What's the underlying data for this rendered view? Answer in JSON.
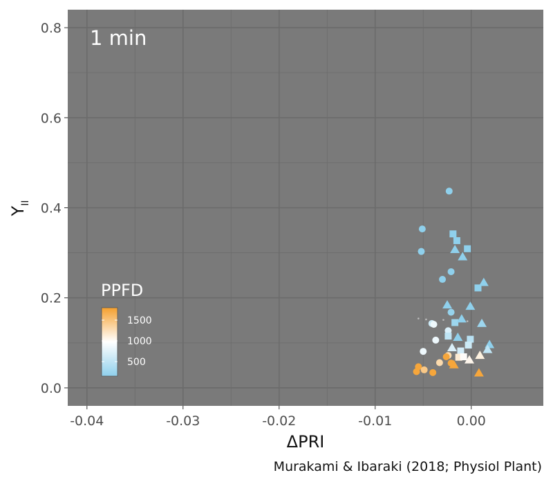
{
  "chart_data": {
    "type": "scatter",
    "title": "",
    "panel_label": "1 min",
    "xlabel": "ΔPRI",
    "ylabel_main": "Y",
    "ylabel_sub": "II",
    "xlim": [
      -0.042,
      0.0075
    ],
    "ylim": [
      -0.04,
      0.84
    ],
    "x_ticks": [
      -0.04,
      -0.03,
      -0.02,
      -0.01,
      0.0
    ],
    "x_tick_labels": [
      "-0.04",
      "-0.03",
      "-0.02",
      "-0.01",
      "0.00"
    ],
    "y_ticks": [
      0.0,
      0.2,
      0.4,
      0.6,
      0.8
    ],
    "y_tick_labels": [
      "0.0",
      "0.2",
      "0.4",
      "0.6",
      "0.8"
    ],
    "grid": true,
    "legend": {
      "title": "PPFD",
      "position": "bottom-left",
      "range": [
        150,
        1800
      ],
      "ticks": [
        500,
        1000,
        1500
      ],
      "tick_labels": [
        "500",
        "1000",
        "1500"
      ],
      "colors": {
        "low": "#8fd0ec",
        "mid": "#ffffff",
        "high": "#f5a02e"
      }
    },
    "caption": "Murakami & Ibaraki (2018; Physiol Plant)",
    "panel_bg": "#7a7a7a",
    "grid_color": "#6b6b6b",
    "points": [
      {
        "x": -0.0023,
        "y": 0.437,
        "shape": "circle",
        "ppfd": 150
      },
      {
        "x": -0.0051,
        "y": 0.353,
        "shape": "circle",
        "ppfd": 150
      },
      {
        "x": -0.0052,
        "y": 0.303,
        "shape": "circle",
        "ppfd": 150
      },
      {
        "x": -0.0021,
        "y": 0.258,
        "shape": "circle",
        "ppfd": 150
      },
      {
        "x": -0.003,
        "y": 0.241,
        "shape": "circle",
        "ppfd": 150
      },
      {
        "x": -0.0021,
        "y": 0.168,
        "shape": "circle",
        "ppfd": 200
      },
      {
        "x": -0.0041,
        "y": 0.143,
        "shape": "circle",
        "ppfd": 600
      },
      {
        "x": -0.0039,
        "y": 0.141,
        "shape": "circle",
        "ppfd": 850
      },
      {
        "x": -0.0024,
        "y": 0.127,
        "shape": "circle",
        "ppfd": 700
      },
      {
        "x": -0.0037,
        "y": 0.106,
        "shape": "circle",
        "ppfd": 850
      },
      {
        "x": -0.005,
        "y": 0.081,
        "shape": "circle",
        "ppfd": 850
      },
      {
        "x": -0.0024,
        "y": 0.072,
        "shape": "circle",
        "ppfd": 1300
      },
      {
        "x": -0.0033,
        "y": 0.056,
        "shape": "circle",
        "ppfd": 1300
      },
      {
        "x": -0.0055,
        "y": 0.047,
        "shape": "circle",
        "ppfd": 1750
      },
      {
        "x": -0.0049,
        "y": 0.04,
        "shape": "circle",
        "ppfd": 1450
      },
      {
        "x": -0.0057,
        "y": 0.036,
        "shape": "circle",
        "ppfd": 1750
      },
      {
        "x": -0.004,
        "y": 0.034,
        "shape": "circle",
        "ppfd": 1750
      },
      {
        "x": -0.0026,
        "y": 0.069,
        "shape": "circle",
        "ppfd": 1750
      },
      {
        "x": -0.0021,
        "y": 0.055,
        "shape": "circle",
        "ppfd": 1750
      },
      {
        "x": -0.0019,
        "y": 0.342,
        "shape": "square",
        "ppfd": 150
      },
      {
        "x": -0.0015,
        "y": 0.327,
        "shape": "square",
        "ppfd": 150
      },
      {
        "x": -0.0004,
        "y": 0.309,
        "shape": "square",
        "ppfd": 150
      },
      {
        "x": 0.0007,
        "y": 0.222,
        "shape": "square",
        "ppfd": 150
      },
      {
        "x": -0.0017,
        "y": 0.145,
        "shape": "square",
        "ppfd": 250
      },
      {
        "x": -0.0024,
        "y": 0.115,
        "shape": "square",
        "ppfd": 500
      },
      {
        "x": -0.0001,
        "y": 0.108,
        "shape": "square",
        "ppfd": 450
      },
      {
        "x": -0.0003,
        "y": 0.095,
        "shape": "square",
        "ppfd": 600
      },
      {
        "x": -0.0011,
        "y": 0.082,
        "shape": "square",
        "ppfd": 650
      },
      {
        "x": -0.0013,
        "y": 0.068,
        "shape": "square",
        "ppfd": 1150
      },
      {
        "x": -0.0008,
        "y": 0.069,
        "shape": "square",
        "ppfd": 1000
      },
      {
        "x": -0.0017,
        "y": 0.307,
        "shape": "triangle",
        "ppfd": 150
      },
      {
        "x": -0.0009,
        "y": 0.291,
        "shape": "triangle",
        "ppfd": 150
      },
      {
        "x": 0.0013,
        "y": 0.234,
        "shape": "triangle",
        "ppfd": 150
      },
      {
        "x": -0.0025,
        "y": 0.184,
        "shape": "triangle",
        "ppfd": 150
      },
      {
        "x": -0.0001,
        "y": 0.181,
        "shape": "triangle",
        "ppfd": 150
      },
      {
        "x": -0.001,
        "y": 0.153,
        "shape": "triangle",
        "ppfd": 150
      },
      {
        "x": 0.0011,
        "y": 0.143,
        "shape": "triangle",
        "ppfd": 250
      },
      {
        "x": -0.0014,
        "y": 0.112,
        "shape": "triangle",
        "ppfd": 150
      },
      {
        "x": 0.0019,
        "y": 0.096,
        "shape": "triangle",
        "ppfd": 150
      },
      {
        "x": -0.002,
        "y": 0.089,
        "shape": "triangle",
        "ppfd": 700
      },
      {
        "x": 0.0017,
        "y": 0.085,
        "shape": "triangle",
        "ppfd": 500
      },
      {
        "x": 0.0009,
        "y": 0.072,
        "shape": "triangle",
        "ppfd": 1100
      },
      {
        "x": -0.0002,
        "y": 0.062,
        "shape": "triangle",
        "ppfd": 1050
      },
      {
        "x": -0.0018,
        "y": 0.051,
        "shape": "triangle",
        "ppfd": 1750
      },
      {
        "x": 0.0008,
        "y": 0.033,
        "shape": "triangle",
        "ppfd": 1750
      },
      {
        "x": -0.0055,
        "y": 0.154,
        "shape": "tiny",
        "ppfd": 1000
      },
      {
        "x": -0.0047,
        "y": 0.152,
        "shape": "tiny",
        "ppfd": 1000
      },
      {
        "x": -0.0029,
        "y": 0.151,
        "shape": "tiny",
        "ppfd": 1000
      },
      {
        "x": -0.0004,
        "y": 0.148,
        "shape": "tiny",
        "ppfd": 1000
      }
    ]
  }
}
